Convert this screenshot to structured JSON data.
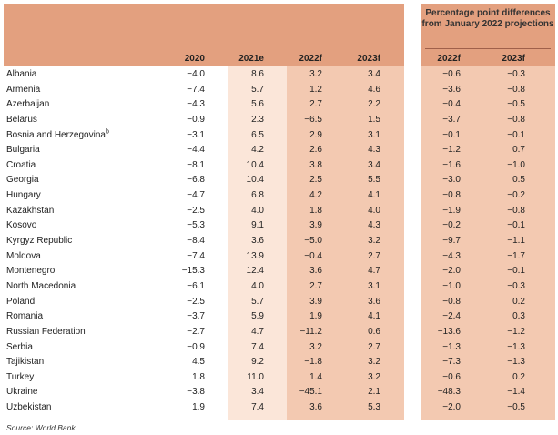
{
  "header": {
    "group_title": "Percentage point differences from January 2022 projections",
    "col_2020": "2020",
    "col_2021": "2021e",
    "col_2022": "2022f",
    "col_2023": "2023f",
    "col_diff_2022": "2022f",
    "col_diff_2023": "2023f"
  },
  "rows": [
    {
      "country": "Albania",
      "y2020": "−4.0",
      "y2021": "8.6",
      "y2022": "3.2",
      "y2023": "3.4",
      "d2022": "−0.6",
      "d2023": "−0.3"
    },
    {
      "country": "Armenia",
      "y2020": "−7.4",
      "y2021": "5.7",
      "y2022": "1.2",
      "y2023": "4.6",
      "d2022": "−3.6",
      "d2023": "−0.8"
    },
    {
      "country": "Azerbaijan",
      "y2020": "−4.3",
      "y2021": "5.6",
      "y2022": "2.7",
      "y2023": "2.2",
      "d2022": "−0.4",
      "d2023": "−0.5"
    },
    {
      "country": "Belarus",
      "y2020": "−0.9",
      "y2021": "2.3",
      "y2022": "−6.5",
      "y2023": "1.5",
      "d2022": "−3.7",
      "d2023": "−0.8"
    },
    {
      "country": "Bosnia and Herzegovina",
      "note": "b",
      "y2020": "−3.1",
      "y2021": "6.5",
      "y2022": "2.9",
      "y2023": "3.1",
      "d2022": "−0.1",
      "d2023": "−0.1"
    },
    {
      "country": "Bulgaria",
      "y2020": "−4.4",
      "y2021": "4.2",
      "y2022": "2.6",
      "y2023": "4.3",
      "d2022": "−1.2",
      "d2023": "0.7"
    },
    {
      "country": "Croatia",
      "y2020": "−8.1",
      "y2021": "10.4",
      "y2022": "3.8",
      "y2023": "3.4",
      "d2022": "−1.6",
      "d2023": "−1.0"
    },
    {
      "country": "Georgia",
      "y2020": "−6.8",
      "y2021": "10.4",
      "y2022": "2.5",
      "y2023": "5.5",
      "d2022": "−3.0",
      "d2023": "0.5"
    },
    {
      "country": "Hungary",
      "y2020": "−4.7",
      "y2021": "6.8",
      "y2022": "4.2",
      "y2023": "4.1",
      "d2022": "−0.8",
      "d2023": "−0.2"
    },
    {
      "country": "Kazakhstan",
      "y2020": "−2.5",
      "y2021": "4.0",
      "y2022": "1.8",
      "y2023": "4.0",
      "d2022": "−1.9",
      "d2023": "−0.8"
    },
    {
      "country": "Kosovo",
      "y2020": "−5.3",
      "y2021": "9.1",
      "y2022": "3.9",
      "y2023": "4.3",
      "d2022": "−0.2",
      "d2023": "−0.1"
    },
    {
      "country": "Kyrgyz Republic",
      "y2020": "−8.4",
      "y2021": "3.6",
      "y2022": "−5.0",
      "y2023": "3.2",
      "d2022": "−9.7",
      "d2023": "−1.1"
    },
    {
      "country": "Moldova",
      "y2020": "−7.4",
      "y2021": "13.9",
      "y2022": "−0.4",
      "y2023": "2.7",
      "d2022": "−4.3",
      "d2023": "−1.7"
    },
    {
      "country": "Montenegro",
      "y2020": "−15.3",
      "y2021": "12.4",
      "y2022": "3.6",
      "y2023": "4.7",
      "d2022": "−2.0",
      "d2023": "−0.1"
    },
    {
      "country": "North Macedonia",
      "y2020": "−6.1",
      "y2021": "4.0",
      "y2022": "2.7",
      "y2023": "3.1",
      "d2022": "−1.0",
      "d2023": "−0.3"
    },
    {
      "country": "Poland",
      "y2020": "−2.5",
      "y2021": "5.7",
      "y2022": "3.9",
      "y2023": "3.6",
      "d2022": "−0.8",
      "d2023": "0.2"
    },
    {
      "country": "Romania",
      "y2020": "−3.7",
      "y2021": "5.9",
      "y2022": "1.9",
      "y2023": "4.1",
      "d2022": "−2.4",
      "d2023": "0.3"
    },
    {
      "country": "Russian Federation",
      "y2020": "−2.7",
      "y2021": "4.7",
      "y2022": "−11.2",
      "y2023": "0.6",
      "d2022": "−13.6",
      "d2023": "−1.2"
    },
    {
      "country": "Serbia",
      "y2020": "−0.9",
      "y2021": "7.4",
      "y2022": "3.2",
      "y2023": "2.7",
      "d2022": "−1.3",
      "d2023": "−1.3"
    },
    {
      "country": "Tajikistan",
      "y2020": "4.5",
      "y2021": "9.2",
      "y2022": "−1.8",
      "y2023": "3.2",
      "d2022": "−7.3",
      "d2023": "−1.3"
    },
    {
      "country": "Turkey",
      "y2020": "1.8",
      "y2021": "11.0",
      "y2022": "1.4",
      "y2023": "3.2",
      "d2022": "−0.6",
      "d2023": "0.2"
    },
    {
      "country": "Ukraine",
      "y2020": "−3.8",
      "y2021": "3.4",
      "y2022": "−45.1",
      "y2023": "2.1",
      "d2022": "−48.3",
      "d2023": "−1.4"
    },
    {
      "country": "Uzbekistan",
      "y2020": "1.9",
      "y2021": "7.4",
      "y2022": "3.6",
      "y2023": "5.3",
      "d2022": "−2.0",
      "d2023": "−0.5"
    }
  ],
  "footer": {
    "source": "Source: World Bank."
  },
  "colors": {
    "header_band": "#e3a07f",
    "shade_light": "#fbe6d9",
    "shade_medium": "#f3c9b1"
  }
}
